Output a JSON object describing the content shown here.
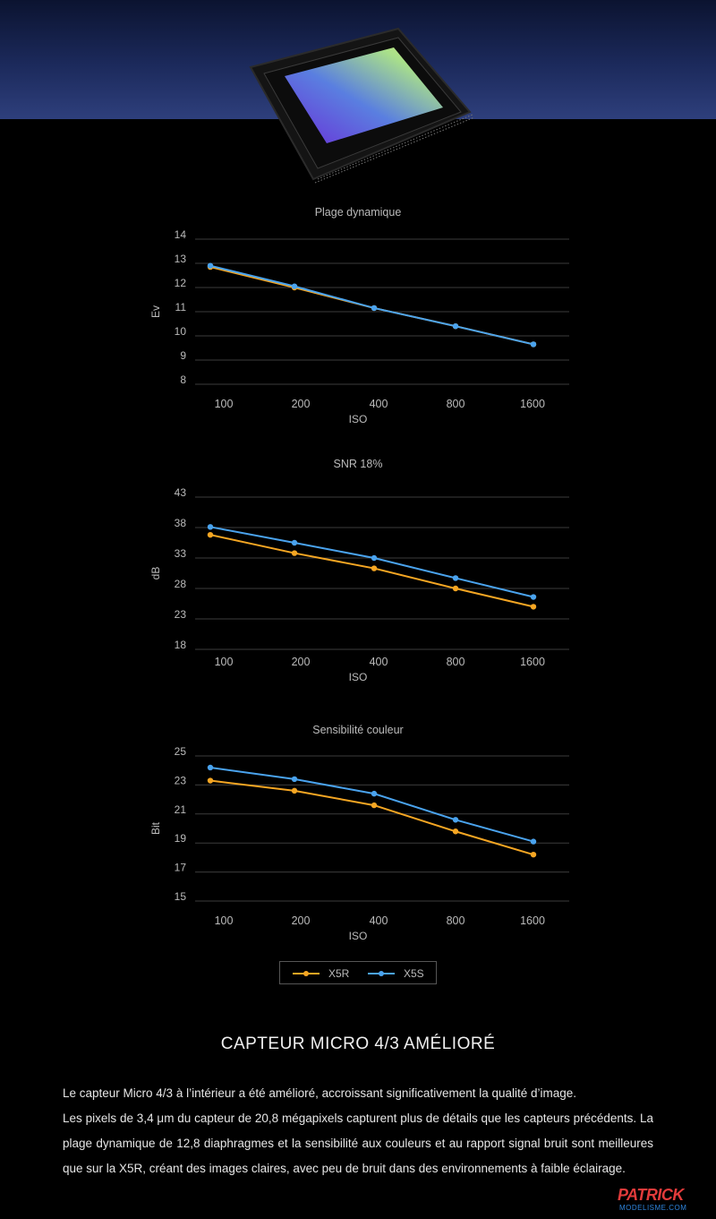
{
  "charts_text": {
    "dr_title": "Plage dynamique",
    "snr_title": "SNR 18%",
    "cs_title": "Sensibilité couleur"
  },
  "legend": {
    "x5r_label": "X5R",
    "x5s_label": "X5S",
    "x5r_color": "#f5a623",
    "x5s_color": "#4aa3ee"
  },
  "section": {
    "title": "CAPTEUR MICRO 4/3 AMÉLIORÉ",
    "paragraph1": "Le capteur Micro 4/3 à l’intérieur a été amélioré, accroissant significativement la qualité d’image.",
    "paragraph2": "Les pixels de 3,4 μm du capteur de 20,8 mégapixels capturent plus de détails que les capteurs précédents. La plage dynamique de 12,8 diaphragmes et la sensibilité aux couleurs et au rapport signal bruit sont meilleures que sur la X5R, créant des images claires, avec peu de bruit dans des environnements à faible éclairage."
  },
  "watermark": {
    "top": "PATRICK",
    "bottom": "MODELISME.COM"
  },
  "chart_data": [
    {
      "type": "line",
      "title": "Plage dynamique",
      "xlabel": "ISO",
      "ylabel": "Ev",
      "categories": [
        "100",
        "200",
        "400",
        "800",
        "1600"
      ],
      "yticks": [
        "14",
        "13",
        "12",
        "11",
        "10",
        "9",
        "8"
      ],
      "ylim": [
        8,
        14
      ],
      "grid": true,
      "series": [
        {
          "name": "X5R",
          "color": "#f5a623",
          "values": [
            12.85,
            12.0,
            11.15,
            10.4,
            9.65
          ]
        },
        {
          "name": "X5S",
          "color": "#4aa3ee",
          "values": [
            12.9,
            12.05,
            11.15,
            10.4,
            9.65
          ]
        }
      ]
    },
    {
      "type": "line",
      "title": "SNR 18%",
      "xlabel": "ISO",
      "ylabel": "dB",
      "categories": [
        "100",
        "200",
        "400",
        "800",
        "1600"
      ],
      "yticks": [
        "43",
        "38",
        "33",
        "28",
        "23",
        "18"
      ],
      "ylim": [
        18,
        43
      ],
      "grid": true,
      "series": [
        {
          "name": "X5R",
          "color": "#f5a623",
          "values": [
            36.8,
            33.8,
            31.3,
            28.0,
            25.0
          ]
        },
        {
          "name": "X5S",
          "color": "#4aa3ee",
          "values": [
            38.1,
            35.5,
            33.0,
            29.7,
            26.6
          ]
        }
      ]
    },
    {
      "type": "line",
      "title": "Sensibilité couleur",
      "xlabel": "ISO",
      "ylabel": "Bit",
      "categories": [
        "100",
        "200",
        "400",
        "800",
        "1600"
      ],
      "yticks": [
        "25",
        "23",
        "21",
        "19",
        "17",
        "15"
      ],
      "ylim": [
        15,
        25
      ],
      "grid": true,
      "legend": "bottom-center",
      "series": [
        {
          "name": "X5R",
          "color": "#f5a623",
          "values": [
            23.3,
            22.6,
            21.6,
            19.8,
            18.2
          ]
        },
        {
          "name": "X5S",
          "color": "#4aa3ee",
          "values": [
            24.2,
            23.4,
            22.4,
            20.6,
            19.1
          ]
        }
      ]
    }
  ]
}
